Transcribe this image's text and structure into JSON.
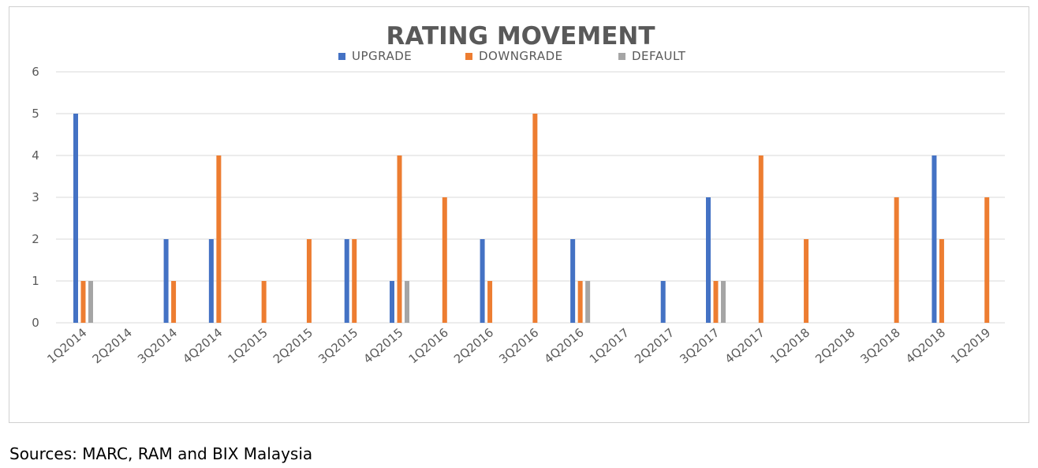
{
  "chart_data": {
    "type": "bar",
    "title": "RATING MOVEMENT",
    "categories": [
      "1Q2014",
      "2Q2014",
      "3Q2014",
      "4Q2014",
      "1Q2015",
      "2Q2015",
      "3Q2015",
      "4Q2015",
      "1Q2016",
      "2Q2016",
      "3Q2016",
      "4Q2016",
      "1Q2017",
      "2Q2017",
      "3Q2017",
      "4Q2017",
      "1Q2018",
      "2Q2018",
      "3Q2018",
      "4Q2018",
      "1Q2019"
    ],
    "series": [
      {
        "name": "UPGRADE",
        "color": "#4472c4",
        "values": [
          5,
          0,
          2,
          2,
          0,
          0,
          2,
          1,
          0,
          2,
          0,
          2,
          0,
          1,
          3,
          0,
          0,
          0,
          0,
          4,
          0
        ]
      },
      {
        "name": "DOWNGRADE",
        "color": "#ed7d31",
        "values": [
          1,
          0,
          1,
          4,
          1,
          2,
          2,
          4,
          3,
          1,
          5,
          1,
          0,
          0,
          1,
          4,
          2,
          0,
          3,
          2,
          3
        ]
      },
      {
        "name": "DEFAULT",
        "color": "#a5a5a5",
        "values": [
          1,
          0,
          0,
          0,
          0,
          0,
          0,
          1,
          0,
          0,
          0,
          1,
          0,
          0,
          1,
          0,
          0,
          0,
          0,
          0,
          0
        ]
      }
    ],
    "yticks": [
      0,
      1,
      2,
      3,
      4,
      5,
      6
    ],
    "ylim": [
      0,
      6
    ],
    "grid": true,
    "legend_position": "top-center"
  },
  "source_note": "Sources: MARC, RAM and BIX Malaysia"
}
